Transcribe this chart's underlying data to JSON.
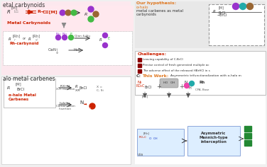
{
  "bg_color": "#f0f0f0",
  "orange_text": "#e07820",
  "red_text": "#cc2200",
  "dark_red": "#8b0000",
  "green": "#44bb44",
  "purple": "#9933cc",
  "brown": "#996633",
  "teal": "#22aaaa",
  "pink": "#ee44aa",
  "blue_text": "#2244cc",
  "challenge1": "Leaving capability of C-BrCl",
  "challenge2": "Precise control of fresh generated multiple active i",
  "challenge3": "The adverse effect of the released HBrHCl in sele"
}
